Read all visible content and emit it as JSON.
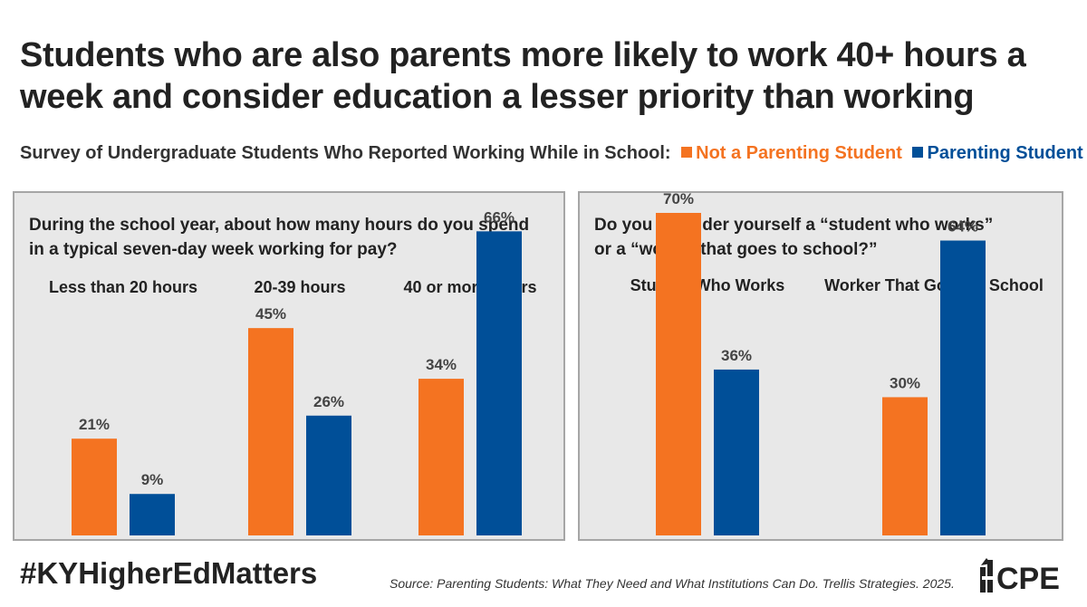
{
  "title": "Students who are also parents more likely to work 40+ hours a week and consider education a lesser priority than working",
  "legend": {
    "prefix": "Survey of Undergraduate Students Who Reported Working While in School:",
    "items": [
      {
        "label": "Not a Parenting Student",
        "color": "#f47321"
      },
      {
        "label": "Parenting Student",
        "color": "#004f98"
      }
    ]
  },
  "colors": {
    "not_parenting": "#f47321",
    "parenting": "#004f98"
  },
  "chart_data": [
    {
      "type": "bar",
      "title": "During the school year, about how many hours do you spend in a typical seven-day week working for pay?",
      "title_lines": [
        "During the school year, about how many hours do you spend",
        "in a typical seven-day week working for pay?"
      ],
      "categories": [
        "Less than 20 hours",
        "20-39 hours",
        "40 or more hours"
      ],
      "series": [
        {
          "name": "Not a Parenting Student",
          "values": [
            21,
            45,
            34
          ],
          "labels": [
            "21%",
            "45%",
            "34%"
          ]
        },
        {
          "name": "Parenting Student",
          "values": [
            9,
            26,
            66
          ],
          "labels": [
            "9%",
            "26%",
            "66%"
          ]
        }
      ],
      "unit": "%",
      "ylim": [
        0,
        70
      ],
      "grid": false
    },
    {
      "type": "bar",
      "title": "Do you consider yourself a “student who works” or a “worker that goes to school?”",
      "title_lines": [
        "Do you consider yourself a “student who works”",
        "or a “worker that goes to school?”"
      ],
      "categories": [
        "Student Who Works",
        "Worker That Goes to School"
      ],
      "series": [
        {
          "name": "Not a Parenting Student",
          "values": [
            70,
            30
          ],
          "labels": [
            "70%",
            "30%"
          ]
        },
        {
          "name": "Parenting Student",
          "values": [
            36,
            64
          ],
          "labels": [
            "36%",
            "64%"
          ]
        }
      ],
      "unit": "%",
      "ylim": [
        0,
        70
      ],
      "grid": false
    }
  ],
  "footer": {
    "hashtag": "#KYHigherEdMatters",
    "source": "Source: Parenting Students: What They Need and What Institutions Can Do. Trellis Strategies. 2025.",
    "logo_text": "CPE"
  }
}
